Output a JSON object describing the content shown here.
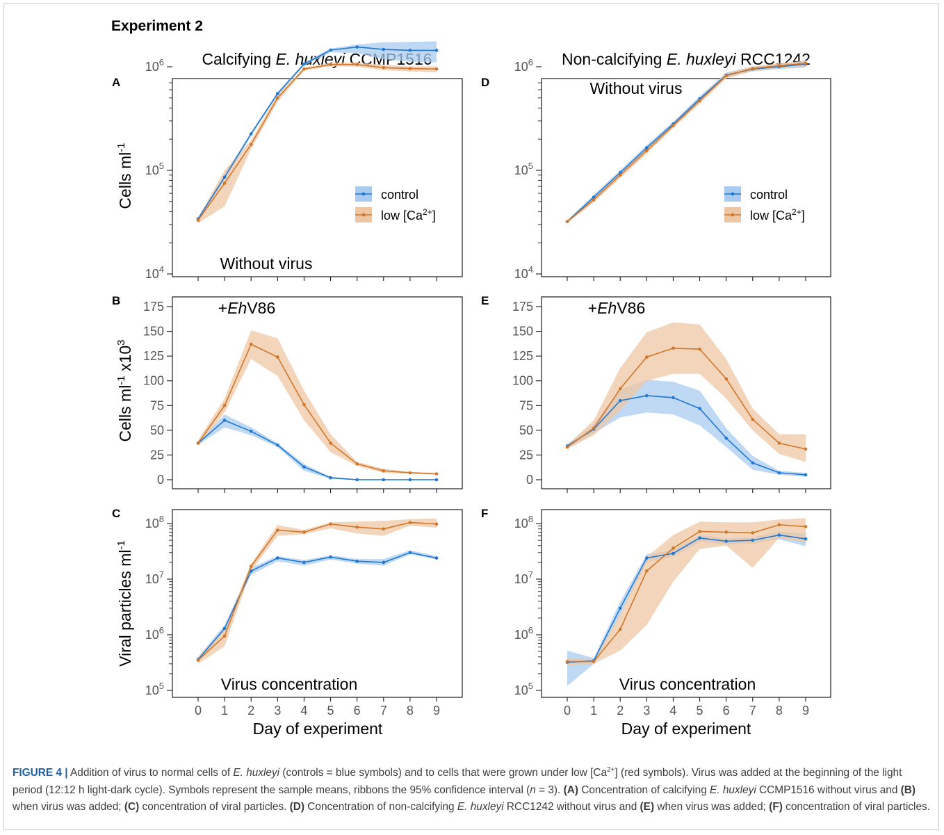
{
  "figure": {
    "heading": "Experiment 2",
    "columns": [
      {
        "prefix": "Calcifying ",
        "species": "E. huxleyi",
        "strain": " CCMP1516"
      },
      {
        "prefix": "Non-calcifying ",
        "species": "E. huxleyi",
        "strain": " RCC1242"
      }
    ],
    "row_ylabels": {
      "cells": "Cells ml",
      "cells_sup": "-1",
      "cells_x": "Cells ml",
      "cells_x_sup1": "-1",
      "cells_x_mid": " x10",
      "cells_x_sup2": "3",
      "viral": "Viral particles ml",
      "viral_sup": "-1"
    },
    "xlabel": "Day of experiment",
    "legend": {
      "control": "control",
      "low_prefix": "low [Ca",
      "low_sup": "2+",
      "low_suffix": "]"
    },
    "annotations": {
      "without_virus": "Without virus",
      "ehv_plus": "+",
      "ehv_italic": "Eh",
      "ehv_rest": "V86",
      "virus_conc": "Virus concentration"
    }
  },
  "colors": {
    "control": "#1f77d4",
    "control_ribbon": "#a9cbef",
    "low": "#d1762a",
    "low_ribbon": "#edc7a3"
  },
  "chart_data": [
    {
      "panel": "A",
      "type": "line",
      "yscale": "log",
      "ylim": [
        10000,
        2000000
      ],
      "yticks": [
        10000,
        100000,
        1000000
      ],
      "ytick_labels": [
        [
          "10",
          "4"
        ],
        [
          "10",
          "5"
        ],
        [
          "10",
          "6"
        ]
      ],
      "x": [
        0,
        1,
        2,
        3,
        4,
        5,
        6,
        7,
        8,
        9
      ],
      "series": [
        {
          "name": "control",
          "values": [
            34000,
            86000,
            225000,
            550000,
            1060000,
            1450000,
            1550000,
            1470000,
            1440000,
            1440000
          ],
          "lower": [
            33000,
            80000,
            215000,
            530000,
            1030000,
            1380000,
            1350000,
            1180000,
            1120000,
            1100000
          ],
          "upper": [
            35000,
            92000,
            235000,
            570000,
            1090000,
            1500000,
            1640000,
            1720000,
            1740000,
            1760000
          ]
        },
        {
          "name": "low [Ca2+]",
          "values": [
            33000,
            75000,
            178000,
            500000,
            950000,
            1050000,
            1050000,
            980000,
            960000,
            950000
          ],
          "lower": [
            31000,
            45000,
            160000,
            460000,
            920000,
            1010000,
            1000000,
            930000,
            900000,
            880000
          ],
          "upper": [
            35000,
            100000,
            195000,
            540000,
            980000,
            1090000,
            1100000,
            1040000,
            1010000,
            1010000
          ]
        }
      ]
    },
    {
      "panel": "B",
      "type": "line",
      "yscale": "linear",
      "ylim": [
        0,
        175
      ],
      "yticks": [
        0,
        25,
        50,
        75,
        100,
        125,
        150,
        175
      ],
      "x": [
        0,
        1,
        2,
        3,
        4,
        5,
        6,
        7,
        8,
        9
      ],
      "series": [
        {
          "name": "control",
          "values": [
            37,
            60,
            49,
            35,
            13,
            2,
            0,
            0,
            0,
            0
          ],
          "lower": [
            35,
            53,
            45,
            33,
            9,
            1,
            0,
            0,
            0,
            0
          ],
          "upper": [
            39,
            66,
            53,
            37,
            16,
            3,
            0.5,
            0.5,
            0.5,
            0.5
          ]
        },
        {
          "name": "low [Ca2+]",
          "values": [
            37,
            75,
            137,
            124,
            76,
            37,
            16,
            9,
            7,
            6
          ],
          "lower": [
            35,
            68,
            122,
            105,
            60,
            28,
            14,
            7,
            6,
            5
          ],
          "upper": [
            40,
            82,
            151,
            143,
            90,
            46,
            18,
            11,
            8,
            7
          ]
        }
      ]
    },
    {
      "panel": "C",
      "type": "line",
      "yscale": "log",
      "ylim": [
        100000,
        150000000
      ],
      "yticks": [
        100000,
        1000000,
        10000000,
        100000000
      ],
      "ytick_labels": [
        [
          "10",
          "5"
        ],
        [
          "10",
          "6"
        ],
        [
          "10",
          "7"
        ],
        [
          "10",
          "8"
        ]
      ],
      "x": [
        0,
        1,
        2,
        3,
        4,
        5,
        6,
        7,
        8,
        9
      ],
      "series": [
        {
          "name": "control",
          "values": [
            360000,
            1300000,
            14000000,
            24000000,
            20000000,
            25000000,
            21000000,
            20000000,
            30000000,
            24000000
          ],
          "lower": [
            330000,
            1150000,
            12000000,
            21000000,
            17500000,
            22500000,
            19000000,
            17500000,
            28000000,
            22500000
          ],
          "upper": [
            400000,
            1500000,
            16000000,
            26000000,
            22000000,
            27000000,
            23000000,
            23000000,
            33000000,
            26000000
          ]
        },
        {
          "name": "low [Ca2+]",
          "values": [
            350000,
            950000,
            17000000,
            76000000,
            70000000,
            98000000,
            86000000,
            80000000,
            104000000,
            98000000
          ],
          "lower": [
            300000,
            620000,
            14000000,
            60000000,
            64000000,
            82000000,
            66000000,
            60000000,
            92000000,
            84000000
          ],
          "upper": [
            400000,
            1300000,
            19000000,
            94000000,
            77000000,
            105000000,
            108000000,
            112000000,
            120000000,
            124000000
          ]
        }
      ]
    },
    {
      "panel": "D",
      "type": "line",
      "yscale": "log",
      "ylim": [
        10000,
        2000000
      ],
      "yticks": [
        10000,
        100000,
        1000000
      ],
      "ytick_labels": [
        [
          "10",
          "4"
        ],
        [
          "10",
          "5"
        ],
        [
          "10",
          "6"
        ]
      ],
      "x": [
        0,
        1,
        2,
        3,
        4,
        5,
        6,
        7,
        8,
        9
      ],
      "series": [
        {
          "name": "control",
          "values": [
            32000,
            55000,
            95000,
            165000,
            280000,
            490000,
            830000,
            950000,
            1000000,
            1060000
          ],
          "lower": [
            31000,
            52000,
            90000,
            155000,
            265000,
            460000,
            780000,
            900000,
            950000,
            980000
          ],
          "upper": [
            33000,
            58000,
            100000,
            175000,
            295000,
            520000,
            880000,
            1000000,
            1060000,
            1140000
          ]
        },
        {
          "name": "low [Ca2+]",
          "values": [
            32000,
            52000,
            90000,
            155000,
            270000,
            470000,
            820000,
            960000,
            1020000,
            1080000
          ],
          "lower": [
            31000,
            49000,
            84000,
            145000,
            255000,
            440000,
            770000,
            910000,
            970000,
            1010000
          ],
          "upper": [
            33000,
            55000,
            96000,
            165000,
            285000,
            500000,
            870000,
            1010000,
            1080000,
            1150000
          ]
        }
      ]
    },
    {
      "panel": "E",
      "type": "line",
      "yscale": "linear",
      "ylim": [
        0,
        175
      ],
      "yticks": [
        0,
        25,
        50,
        75,
        100,
        125,
        150,
        175
      ],
      "x": [
        0,
        1,
        2,
        3,
        4,
        5,
        6,
        7,
        8,
        9
      ],
      "series": [
        {
          "name": "control",
          "values": [
            34,
            51,
            80,
            85,
            83,
            72,
            42,
            17,
            7,
            5
          ],
          "lower": [
            32,
            47,
            63,
            68,
            66,
            55,
            33,
            10,
            5,
            3
          ],
          "upper": [
            36,
            56,
            91,
            101,
            99,
            90,
            52,
            24,
            9,
            7
          ]
        },
        {
          "name": "low [Ca2+]",
          "values": [
            33,
            52,
            92,
            124,
            133,
            132,
            102,
            61,
            37,
            31
          ],
          "lower": [
            31,
            45,
            70,
            100,
            107,
            107,
            82,
            50,
            26,
            18
          ],
          "upper": [
            35,
            60,
            113,
            149,
            159,
            157,
            122,
            72,
            46,
            46
          ]
        }
      ]
    },
    {
      "panel": "F",
      "type": "line",
      "yscale": "log",
      "ylim": [
        100000,
        150000000
      ],
      "yticks": [
        100000,
        1000000,
        10000000,
        100000000
      ],
      "ytick_labels": [
        [
          "10",
          "5"
        ],
        [
          "10",
          "6"
        ],
        [
          "10",
          "7"
        ],
        [
          "10",
          "8"
        ]
      ],
      "x": [
        0,
        1,
        2,
        3,
        4,
        5,
        6,
        7,
        8,
        9
      ],
      "series": [
        {
          "name": "control",
          "values": [
            320000,
            340000,
            3000000,
            24000000,
            29000000,
            55000000,
            48000000,
            50000000,
            62000000,
            53000000
          ],
          "lower": [
            120000,
            300000,
            2200000,
            20000000,
            25000000,
            47000000,
            42000000,
            43000000,
            52000000,
            39000000
          ],
          "upper": [
            520000,
            380000,
            3900000,
            28000000,
            33000000,
            62000000,
            54000000,
            57000000,
            72000000,
            66000000
          ]
        },
        {
          "name": "low [Ca2+]",
          "values": [
            330000,
            330000,
            1250000,
            14000000,
            36000000,
            72000000,
            70000000,
            68000000,
            95000000,
            88000000
          ],
          "lower": [
            280000,
            300000,
            520000,
            1500000,
            9000000,
            35000000,
            40000000,
            16000000,
            55000000,
            45000000
          ],
          "upper": [
            380000,
            360000,
            2300000,
            25000000,
            62000000,
            108000000,
            105000000,
            105000000,
            118000000,
            125000000
          ]
        }
      ]
    }
  ],
  "caption": {
    "label": "FIGURE 4 |",
    "t1": " Addition of virus to normal cells of ",
    "i1": "E. huxleyi",
    "t2": " (controls = blue symbols) and to cells that were grown under low [Ca",
    "sup1": "2+",
    "t3": "] (red symbols). Virus was added at the beginning of the light period (12:12 h light-dark cycle). Symbols represent the sample means, ribbons the 95% confidence interval (",
    "i2": "n",
    "t4": " = 3). ",
    "bA": "(A)",
    "t5": " Concentration of calcifying ",
    "i3": "E. huxleyi",
    "t6": " CCMP1516 without virus and ",
    "bB": "(B)",
    "t7": " when virus was added; ",
    "bC": "(C)",
    "t8": " concentration of viral particles. ",
    "bD": "(D)",
    "t9": " Concentration of non-calcifying ",
    "i4": "E. huxleyi",
    "t10": " RCC1242 without virus and ",
    "bE": "(E)",
    "t11": " when virus was added; ",
    "bF": "(F)",
    "t12": " concentration of viral particles."
  }
}
